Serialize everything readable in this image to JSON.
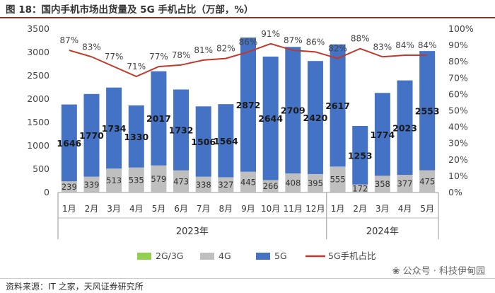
{
  "title": "图 18：国内手机市场出货量及 5G 手机占比（万部，%）",
  "source": "资料来源：IT 之家，天风证券研究所",
  "watermark": "❀ 公众号 · 科技伊甸园",
  "chart_data": {
    "type": "bar",
    "categories": [
      "1月",
      "2月",
      "3月",
      "4月",
      "5月",
      "6月",
      "7月",
      "8月",
      "9月",
      "10月",
      "11月",
      "12月",
      "1月",
      "2月",
      "3月",
      "4月",
      "5月"
    ],
    "groups": [
      {
        "label": "2023年",
        "from": 0,
        "to": 11
      },
      {
        "label": "2024年",
        "from": 12,
        "to": 16
      }
    ],
    "series": [
      {
        "name": "2G/3G",
        "kind": "bar",
        "color": "#92d050",
        "values": [
          0,
          0,
          0,
          0,
          0,
          0,
          0,
          0,
          0,
          0,
          0,
          0,
          0,
          0,
          0,
          0,
          0
        ]
      },
      {
        "name": "4G",
        "kind": "bar",
        "color": "#bfbfbf",
        "values": [
          239,
          339,
          513,
          535,
          579,
          473,
          338,
          327,
          445,
          266,
          408,
          395,
          555,
          172,
          358,
          377,
          475
        ]
      },
      {
        "name": "5G",
        "kind": "bar",
        "color": "#4472c4",
        "values": [
          1646,
          1770,
          1734,
          1330,
          2017,
          1732,
          1506,
          1564,
          2872,
          2644,
          2709,
          2420,
          2617,
          1253,
          1774,
          2023,
          2553
        ]
      },
      {
        "name": "5G手机占比",
        "kind": "line",
        "axis": "right",
        "color": "#c0392b",
        "values": [
          87,
          83,
          77,
          71,
          77,
          78,
          81,
          82,
          86,
          91,
          87,
          86,
          82,
          88,
          83,
          84,
          84
        ]
      }
    ],
    "y_left": {
      "min": 0,
      "max": 3500,
      "ticks": [
        0,
        500,
        1000,
        1500,
        2000,
        2500,
        3000,
        3500
      ]
    },
    "y_right": {
      "min": 0,
      "max": 100,
      "ticks": [
        "0%",
        "10%",
        "20%",
        "30%",
        "40%",
        "50%",
        "60%",
        "70%",
        "80%",
        "90%",
        "100%"
      ]
    },
    "grid": false,
    "legend_position": "bottom"
  }
}
